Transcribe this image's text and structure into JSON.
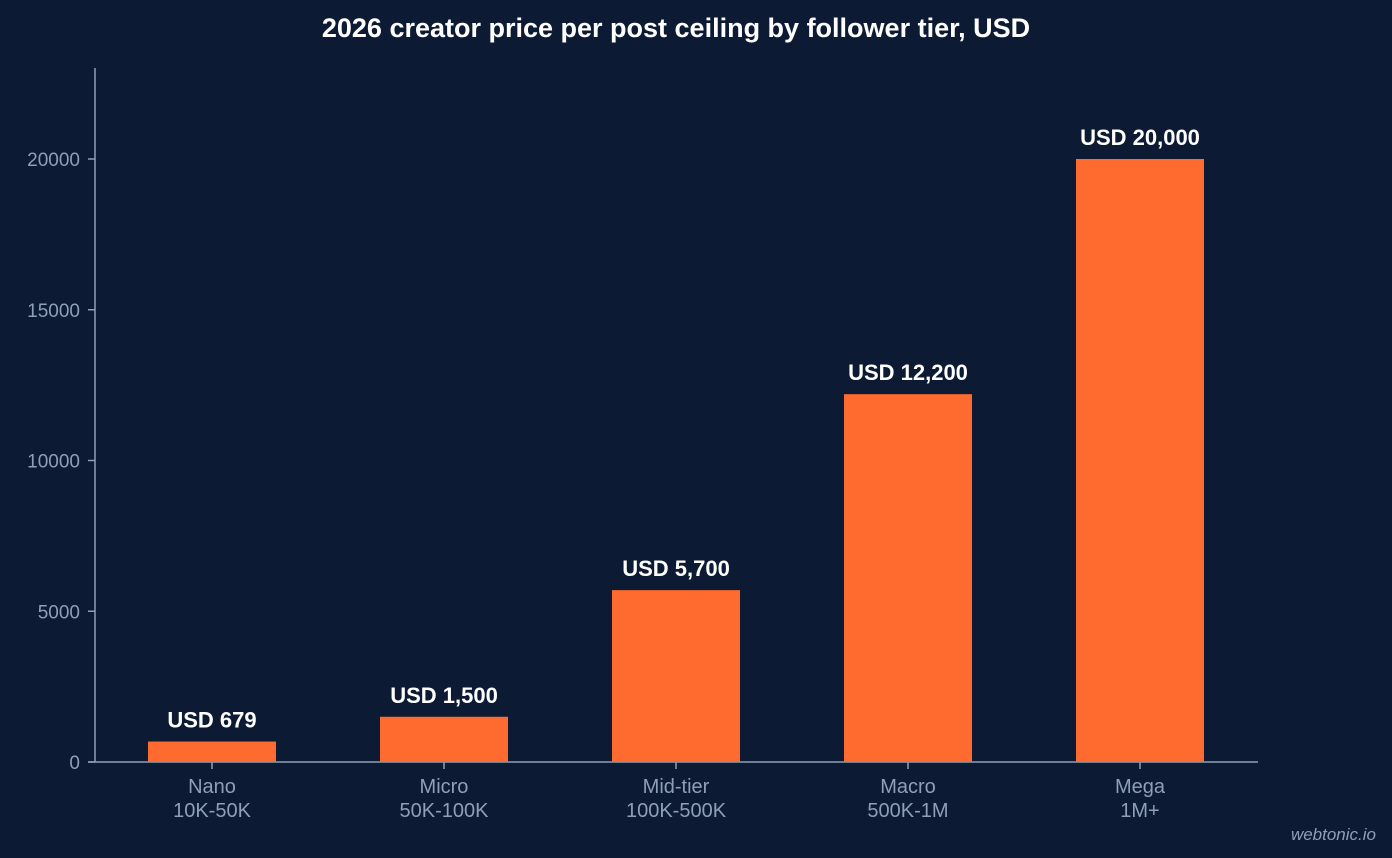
{
  "chart_data": {
    "type": "bar",
    "title": "2026 creator price per post ceiling by follower tier, USD",
    "xlabel": "",
    "ylabel": "",
    "categories": [
      {
        "name": "Nano",
        "range": "10K-50K"
      },
      {
        "name": "Micro",
        "range": "50K-100K"
      },
      {
        "name": "Mid-tier",
        "range": "100K-500K"
      },
      {
        "name": "Macro",
        "range": "500K-1M"
      },
      {
        "name": "Mega",
        "range": "1M+"
      }
    ],
    "values": [
      679,
      1500,
      5700,
      12200,
      20000
    ],
    "data_labels": [
      "USD 679",
      "USD 1,500",
      "USD 5,700",
      "USD 12,200",
      "USD 20,000"
    ],
    "ylim": [
      0,
      23000
    ],
    "yticks": [
      0,
      5000,
      10000,
      15000,
      20000
    ],
    "ytick_labels": [
      "0",
      "5000",
      "10000",
      "15000",
      "20000"
    ],
    "grid": false,
    "legend": "none",
    "colors": {
      "background": "#0c1b33",
      "bar": "#ff6b2e",
      "axis": "#8e9fb6",
      "text": "#ffffff"
    }
  },
  "watermark": "webtonic.io"
}
